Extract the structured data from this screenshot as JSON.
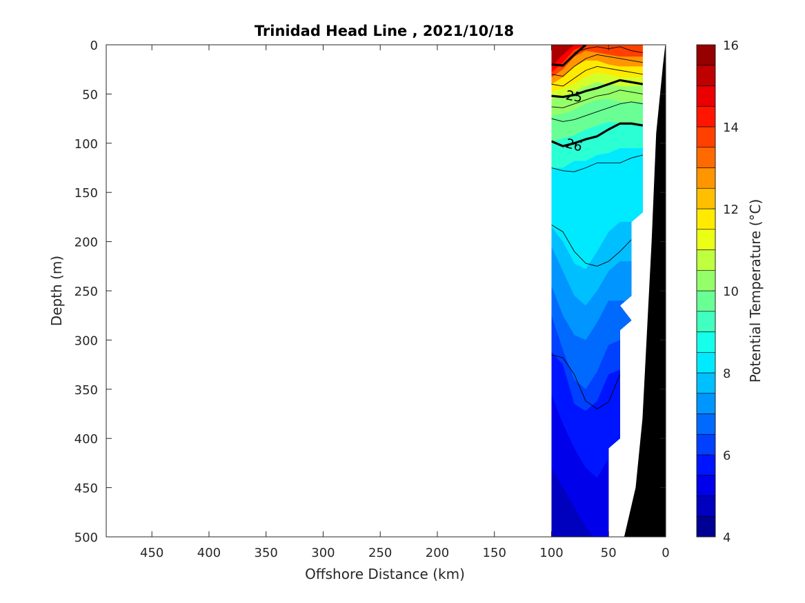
{
  "chart_data": {
    "type": "contour-section",
    "title": "Trinidad Head Line , 2021/10/18",
    "xlabel": "Offshore Distance (km)",
    "ylabel": "Depth (m)",
    "xlim": [
      490,
      0
    ],
    "ylim": [
      0,
      500
    ],
    "x_ticks": [
      450,
      400,
      350,
      300,
      250,
      200,
      150,
      100,
      50,
      0
    ],
    "y_ticks": [
      0,
      50,
      100,
      150,
      200,
      250,
      300,
      350,
      400,
      450,
      500
    ],
    "x_reversed": true,
    "y_reversed": true,
    "colorbar": {
      "label": "Potential Temperature (°C)",
      "min": 4,
      "max": 16,
      "ticks": [
        4,
        6,
        8,
        10,
        12,
        14,
        16
      ],
      "levels": [
        4,
        4.5,
        5,
        5.5,
        6,
        6.5,
        7,
        7.5,
        8,
        8.5,
        9,
        9.5,
        10,
        10.5,
        11,
        11.5,
        12,
        12.5,
        13,
        13.5,
        14,
        14.5,
        15,
        15.5,
        16
      ]
    },
    "temperature_layers": [
      {
        "temp": 15.5,
        "depths": [
          22,
          10,
          0,
          0,
          0,
          0,
          0
        ]
      },
      {
        "temp": 14.5,
        "depths": [
          28,
          18,
          5,
          0,
          0,
          0,
          0
        ]
      },
      {
        "temp": 13.75,
        "depths": [
          33,
          25,
          12,
          6,
          8,
          10,
          12
        ]
      },
      {
        "temp": 12.75,
        "depths": [
          40,
          33,
          22,
          16,
          16,
          20,
          22
        ]
      },
      {
        "temp": 11.75,
        "depths": [
          48,
          44,
          40,
          32,
          28,
          30,
          33
        ]
      },
      {
        "temp": 11.0,
        "depths": [
          55,
          52,
          48,
          42,
          38,
          40,
          42
        ]
      },
      {
        "temp": 10.25,
        "depths": [
          72,
          70,
          66,
          60,
          56,
          55,
          58
        ]
      },
      {
        "temp": 9.75,
        "depths": [
          98,
          95,
          92,
          86,
          82,
          78,
          80
        ]
      },
      {
        "temp": 9.0,
        "depths": [
          125,
          125,
          118,
          118,
          112,
          110,
          105
        ]
      },
      {
        "temp": 8.25,
        "depths": [
          185,
          200,
          222,
          228,
          210,
          190,
          180
        ]
      },
      {
        "temp": 7.75,
        "depths": [
          205,
          230,
          255,
          265,
          250,
          230,
          220
        ]
      },
      {
        "temp": 7.25,
        "depths": [
          245,
          275,
          295,
          300,
          282,
          260,
          260
        ]
      },
      {
        "temp": 6.75,
        "depths": [
          275,
          310,
          340,
          350,
          332,
          305,
          300
        ]
      },
      {
        "temp": 6.25,
        "depths": [
          312,
          325,
          365,
          372,
          362,
          335,
          330
        ]
      },
      {
        "temp": 5.75,
        "depths": [
          355,
          385,
          410,
          430,
          440,
          420,
          420
        ]
      },
      {
        "temp": 5.25,
        "depths": [
          430,
          450,
          470,
          490,
          505,
          505,
          505
        ]
      },
      {
        "temp": 4.75,
        "depths": [
          470,
          490,
          505,
          505,
          505,
          505,
          505
        ]
      }
    ],
    "layer_x_km": [
      100,
      90,
      80,
      70,
      60,
      50,
      40
    ],
    "data_extent": {
      "x_km": [
        100,
        20
      ],
      "bottom_depth_by_x": [
        [
          100,
          500
        ],
        [
          50,
          500
        ],
        [
          50,
          410
        ],
        [
          40,
          400
        ],
        [
          40,
          290
        ],
        [
          30,
          280
        ],
        [
          40,
          265
        ],
        [
          30,
          255
        ],
        [
          30,
          180
        ],
        [
          20,
          170
        ],
        [
          20,
          0
        ]
      ]
    },
    "contour_lines": [
      {
        "label": "25",
        "bold": true,
        "x": [
          100,
          90,
          80,
          70,
          60,
          50,
          40,
          30,
          20
        ],
        "y": [
          52,
          53,
          51,
          47,
          44,
          40,
          36,
          38,
          40
        ]
      },
      {
        "label": "26",
        "bold": true,
        "x": [
          100,
          90,
          80,
          70,
          60,
          50,
          40,
          30,
          20
        ],
        "y": [
          98,
          103,
          100,
          96,
          93,
          86,
          80,
          80,
          82
        ]
      },
      {
        "label": "",
        "bold": true,
        "x": [
          100,
          90,
          80,
          70
        ],
        "y": [
          20,
          21,
          10,
          0
        ]
      },
      {
        "label": "",
        "bold": false,
        "x": [
          100,
          90,
          80,
          70,
          60,
          50,
          40,
          30,
          20
        ],
        "y": [
          125,
          128,
          129,
          125,
          120,
          120,
          120,
          115,
          112
        ]
      },
      {
        "label": "",
        "bold": false,
        "x": [
          100,
          90,
          80,
          70,
          60,
          50,
          40,
          30
        ],
        "y": [
          183,
          190,
          210,
          222,
          225,
          220,
          210,
          198
        ]
      },
      {
        "label": "",
        "bold": false,
        "x": [
          100,
          90,
          80,
          70,
          60,
          50,
          40
        ],
        "y": [
          315,
          318,
          335,
          362,
          370,
          363,
          335
        ]
      },
      {
        "label": "",
        "bold": false,
        "x": [
          100,
          90,
          80,
          70,
          60,
          50,
          40,
          30,
          20
        ],
        "y": [
          75,
          78,
          76,
          72,
          68,
          64,
          60,
          58,
          60
        ]
      },
      {
        "label": "",
        "bold": false,
        "x": [
          100,
          90,
          80,
          70,
          60,
          50,
          40,
          30,
          20
        ],
        "y": [
          63,
          64,
          60,
          56,
          52,
          50,
          46,
          48,
          50
        ]
      },
      {
        "label": "",
        "bold": false,
        "x": [
          100,
          90,
          80,
          70,
          60,
          50,
          40,
          30,
          20
        ],
        "y": [
          40,
          42,
          34,
          26,
          22,
          24,
          26,
          28,
          30
        ]
      },
      {
        "label": "",
        "bold": false,
        "x": [
          100,
          90,
          80,
          70,
          60,
          50,
          40,
          30,
          20
        ],
        "y": [
          30,
          32,
          22,
          14,
          10,
          12,
          14,
          16,
          18
        ]
      },
      {
        "label": "",
        "bold": false,
        "x": [
          80,
          70,
          60,
          50,
          40,
          30,
          20
        ],
        "y": [
          8,
          4,
          2,
          4,
          2,
          6,
          8
        ]
      }
    ],
    "bathymetry": {
      "x": [
        0,
        2,
        8,
        12,
        16,
        20,
        26,
        36
      ],
      "y": [
        0,
        20,
        90,
        200,
        290,
        380,
        450,
        500
      ]
    }
  }
}
